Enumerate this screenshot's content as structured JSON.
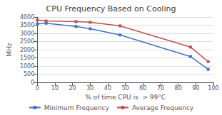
{
  "chart_data": {
    "type": "line",
    "title": "CPU Frequency Based on Cooling",
    "xlabel": "% of time CPU is  > 99°C",
    "ylabel": "MHz",
    "x": [
      0,
      5,
      22,
      30,
      47,
      87,
      97
    ],
    "series": [
      {
        "name": "Minimum Frequency",
        "color": "#4472c4",
        "values": [
          3580,
          3620,
          3420,
          3280,
          2900,
          1580,
          800
        ]
      },
      {
        "name": "Average Frequency",
        "color": "#c0504d",
        "values": [
          3820,
          3760,
          3720,
          3680,
          3460,
          2160,
          1270
        ]
      }
    ],
    "xlim": [
      0,
      100
    ],
    "xticks": [
      0,
      10,
      20,
      30,
      40,
      50,
      60,
      70,
      80,
      90,
      100
    ],
    "ylim": [
      0,
      4000
    ],
    "yticks": [
      0,
      500,
      1000,
      1500,
      2000,
      2500,
      3000,
      3500,
      4000
    ],
    "grid": true,
    "legend": "bottom",
    "marker": "square"
  }
}
